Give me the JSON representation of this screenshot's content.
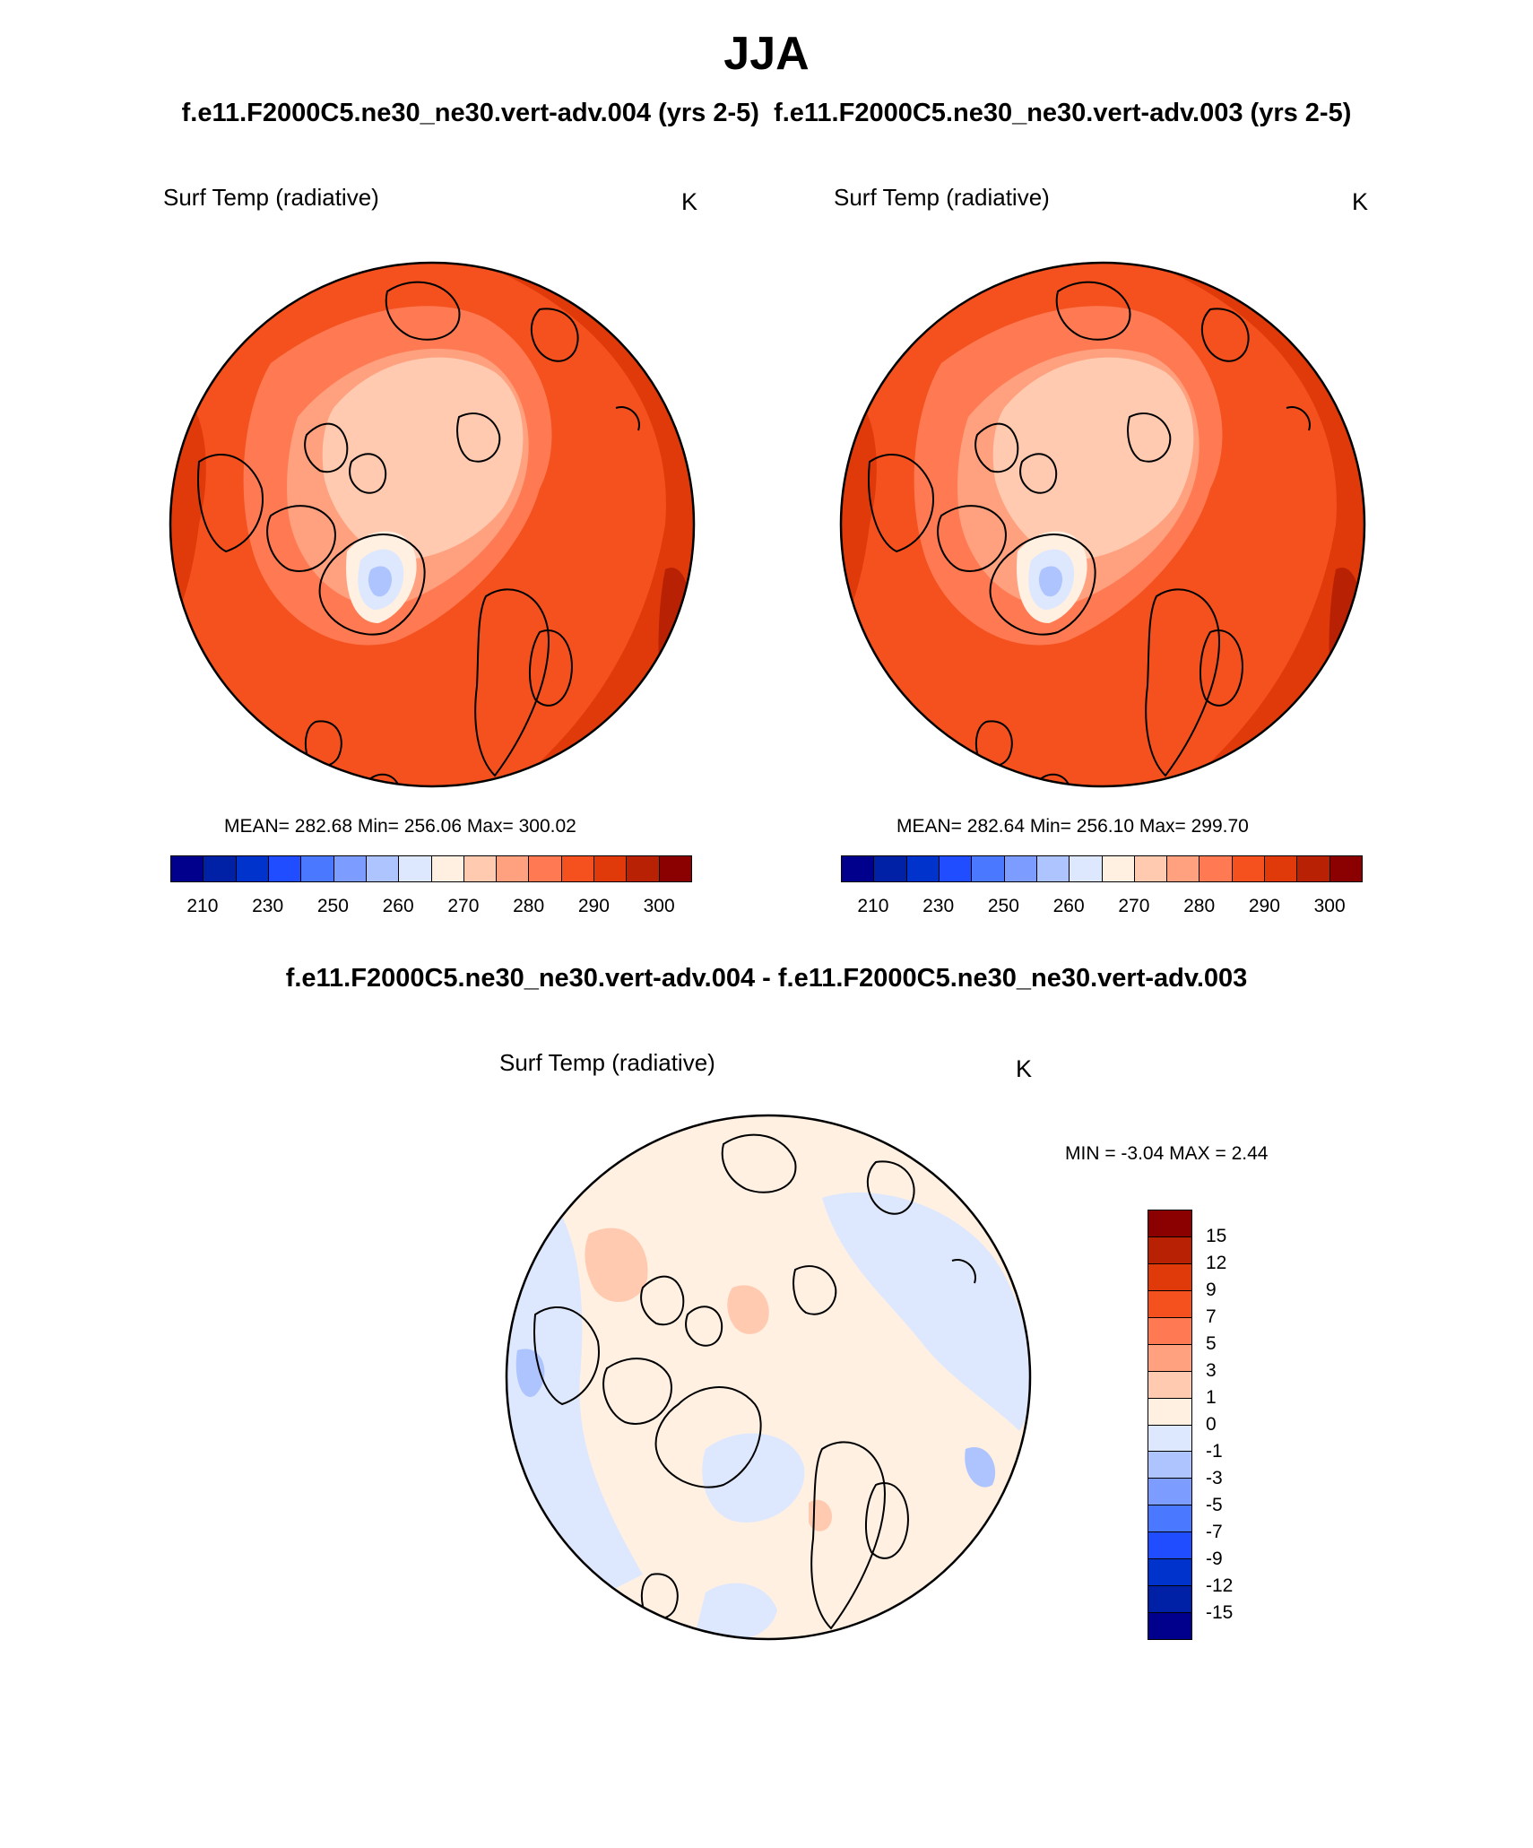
{
  "title": "JJA",
  "subtitle_left": "f.e11.F2000C5.ne30_ne30.vert-adv.004 (yrs 2-5)",
  "subtitle_right": "f.e11.F2000C5.ne30_ne30.vert-adv.003 (yrs 2-5)",
  "diff_title": "f.e11.F2000C5.ne30_ne30.vert-adv.004 - f.e11.F2000C5.ne30_ne30.vert-adv.003",
  "panels": [
    {
      "variable": "Surf Temp (radiative)",
      "units": "K",
      "stats": "MEAN= 282.68  Min= 256.06  Max= 300.02"
    },
    {
      "variable": "Surf Temp (radiative)",
      "units": "K",
      "stats": "MEAN= 282.64  Min= 256.10  Max= 299.70"
    }
  ],
  "diff_panel": {
    "variable": "Surf Temp (radiative)",
    "units": "K",
    "stats": "MIN =  -3.04 MAX =   2.44"
  },
  "abs_colorbar": {
    "colors": [
      "#00008c",
      "#0021a6",
      "#0033cc",
      "#1f4dff",
      "#4a78ff",
      "#7c9dff",
      "#aec4ff",
      "#dde8ff",
      "#fff0e1",
      "#ffcab0",
      "#ffa07e",
      "#ff7a52",
      "#f4511e",
      "#e03a0a",
      "#b82104",
      "#8b0000"
    ],
    "tick_labels": [
      "210",
      "230",
      "250",
      "260",
      "270",
      "280",
      "290",
      "300"
    ]
  },
  "diff_colorbar": {
    "colors_top_to_bottom": [
      "#8b0000",
      "#b82104",
      "#e03a0a",
      "#f4511e",
      "#ff7a52",
      "#ffa07e",
      "#ffcab0",
      "#fff0e1",
      "#dde8ff",
      "#aec4ff",
      "#7c9dff",
      "#4a78ff",
      "#1f4dff",
      "#0033cc",
      "#0021a6",
      "#00008c"
    ],
    "tick_labels": [
      "15",
      "12",
      "9",
      "7",
      "5",
      "3",
      "1",
      "0",
      "-1",
      "-3",
      "-5",
      "-7",
      "-9",
      "-12",
      "-15"
    ]
  }
}
